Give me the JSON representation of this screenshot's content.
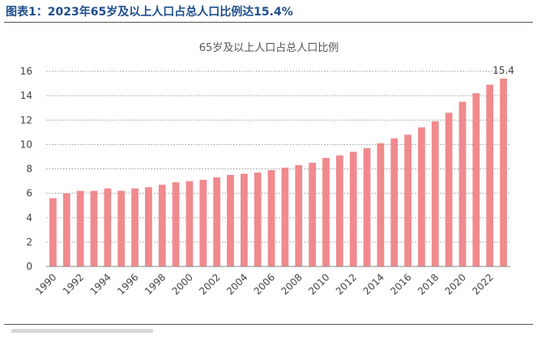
{
  "figure_title": "图表1：2023年65岁及以上人口占总人口比例达15.4%",
  "chart_data": {
    "type": "bar",
    "title": "65岁及以上人口占总人口比例",
    "xlabel": "",
    "ylabel": "",
    "ylim": [
      0,
      16
    ],
    "yticks": [
      0,
      2,
      4,
      6,
      8,
      10,
      12,
      14,
      16
    ],
    "grid": "horizontal-dotted",
    "bar_color": "#f08a8d",
    "categories": [
      "1990",
      "1991",
      "1992",
      "1993",
      "1994",
      "1995",
      "1996",
      "1997",
      "1998",
      "1999",
      "2000",
      "2001",
      "2002",
      "2003",
      "2004",
      "2005",
      "2006",
      "2007",
      "2008",
      "2009",
      "2010",
      "2011",
      "2012",
      "2013",
      "2014",
      "2015",
      "2016",
      "2017",
      "2018",
      "2019",
      "2020",
      "2021",
      "2022",
      "2023"
    ],
    "xtick_labels": [
      "1990",
      "1992",
      "1994",
      "1996",
      "1998",
      "2000",
      "2002",
      "2004",
      "2006",
      "2008",
      "2010",
      "2012",
      "2014",
      "2016",
      "2018",
      "2020",
      "2022"
    ],
    "values": [
      5.6,
      6.0,
      6.2,
      6.2,
      6.4,
      6.2,
      6.4,
      6.5,
      6.7,
      6.9,
      7.0,
      7.1,
      7.3,
      7.5,
      7.6,
      7.7,
      7.9,
      8.1,
      8.3,
      8.5,
      8.9,
      9.1,
      9.4,
      9.7,
      10.1,
      10.5,
      10.8,
      11.4,
      11.9,
      12.6,
      13.5,
      14.2,
      14.9,
      15.4
    ],
    "data_labels": [
      {
        "category": "2023",
        "text": "15.4"
      }
    ]
  }
}
